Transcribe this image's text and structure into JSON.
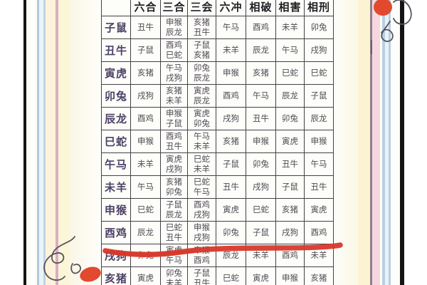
{
  "table": {
    "headers": [
      "",
      "六合",
      "三合",
      "三会",
      "六冲",
      "相破",
      "相害",
      "相刑"
    ],
    "rows": [
      {
        "label": "子鼠",
        "cells": [
          [
            "丑牛"
          ],
          [
            "申猴",
            "辰龙"
          ],
          [
            "亥猪",
            "丑牛"
          ],
          [
            "午马"
          ],
          [
            "酉鸡"
          ],
          [
            "未羊"
          ],
          [
            "卯兔"
          ]
        ]
      },
      {
        "label": "丑牛",
        "cells": [
          [
            "子鼠"
          ],
          [
            "酉鸡",
            "巳蛇"
          ],
          [
            "子鼠",
            "亥猪"
          ],
          [
            "未羊"
          ],
          [
            "辰龙"
          ],
          [
            "午马"
          ],
          [
            "戌狗"
          ]
        ]
      },
      {
        "label": "寅虎",
        "cells": [
          [
            "亥猪"
          ],
          [
            "午马",
            "戌狗"
          ],
          [
            "卯兔",
            "辰龙"
          ],
          [
            "申猴"
          ],
          [
            "亥猪"
          ],
          [
            "巳蛇"
          ],
          [
            "巳蛇"
          ]
        ]
      },
      {
        "label": "卯兔",
        "cells": [
          [
            "戌狗"
          ],
          [
            "亥猪",
            "未羊"
          ],
          [
            "寅虎",
            "辰龙"
          ],
          [
            "酉鸡"
          ],
          [
            "午马"
          ],
          [
            "辰龙"
          ],
          [
            "子鼠"
          ]
        ]
      },
      {
        "label": "辰龙",
        "cells": [
          [
            "酉鸡"
          ],
          [
            "申猴",
            "子鼠"
          ],
          [
            "寅虎",
            "卯兔"
          ],
          [
            "戌狗"
          ],
          [
            "丑牛"
          ],
          [
            "卯兔"
          ],
          [
            "辰龙"
          ]
        ]
      },
      {
        "label": "巳蛇",
        "cells": [
          [
            "申猴"
          ],
          [
            "酉鸡",
            "丑牛"
          ],
          [
            "午马",
            "未羊"
          ],
          [
            "亥猪"
          ],
          [
            "申猴"
          ],
          [
            "寅虎"
          ],
          [
            "申猴"
          ]
        ]
      },
      {
        "label": "午马",
        "cells": [
          [
            "未羊"
          ],
          [
            "寅虎",
            "戌狗"
          ],
          [
            "巳蛇",
            "未羊"
          ],
          [
            "子鼠"
          ],
          [
            "卯兔"
          ],
          [
            "丑牛"
          ],
          [
            "午马"
          ]
        ]
      },
      {
        "label": "未羊",
        "cells": [
          [
            "午马"
          ],
          [
            "亥猪",
            "卯兔"
          ],
          [
            "巳蛇",
            "午马"
          ],
          [
            "丑牛"
          ],
          [
            "戌狗"
          ],
          [
            "子鼠"
          ],
          [
            "丑牛"
          ]
        ]
      },
      {
        "label": "申猴",
        "cells": [
          [
            "巳蛇"
          ],
          [
            "子鼠",
            "辰龙"
          ],
          [
            "酉鸡",
            "戌狗"
          ],
          [
            "寅虎"
          ],
          [
            "巳蛇"
          ],
          [
            "亥猪"
          ],
          [
            "寅虎"
          ]
        ]
      },
      {
        "label": "酉鸡",
        "cells": [
          [
            "辰龙"
          ],
          [
            "巳蛇",
            "丑牛"
          ],
          [
            "申猴",
            "戌狗"
          ],
          [
            "卯兔"
          ],
          [
            "子鼠"
          ],
          [
            "戌狗"
          ],
          [
            "酉鸡"
          ]
        ],
        "underlined": true
      },
      {
        "label": "戌狗",
        "cells": [
          [
            "卯兔"
          ],
          [
            "寅虎",
            "午马"
          ],
          [
            "申猴",
            "酉鸡"
          ],
          [
            "辰龙"
          ],
          [
            "未羊"
          ],
          [
            "酉鸡"
          ],
          [
            "未羊"
          ]
        ]
      },
      {
        "label": "亥猪",
        "cells": [
          [
            "寅虎"
          ],
          [
            "卯兔",
            "未羊"
          ],
          [
            "子鼠",
            "丑牛"
          ],
          [
            "巳蛇"
          ],
          [
            "寅虎"
          ],
          [
            "申猴"
          ],
          [
            "亥猪"
          ]
        ]
      }
    ]
  },
  "annotations": {
    "underline": {
      "row_label": "酉鸡",
      "style": "hand-drawn marker stroke",
      "color": "#d8382a"
    }
  },
  "decorations": {
    "doodle_top_right": "cherry-doodle",
    "doodle_bottom_left": "cherry-doodle",
    "colors": {
      "marker_red": "#d8382a",
      "doodle_red": "#e2492f",
      "doodle_stroke": "#575260",
      "stripe_yellow": "#fcf3da",
      "stripe_pink": "#dcaec2",
      "stripe_blue": "#b2c8dc",
      "border_black": "#141414",
      "table_border": "#45414a",
      "row_label_color": "#4c4166",
      "cell_text_color": "#4f4b55"
    }
  }
}
